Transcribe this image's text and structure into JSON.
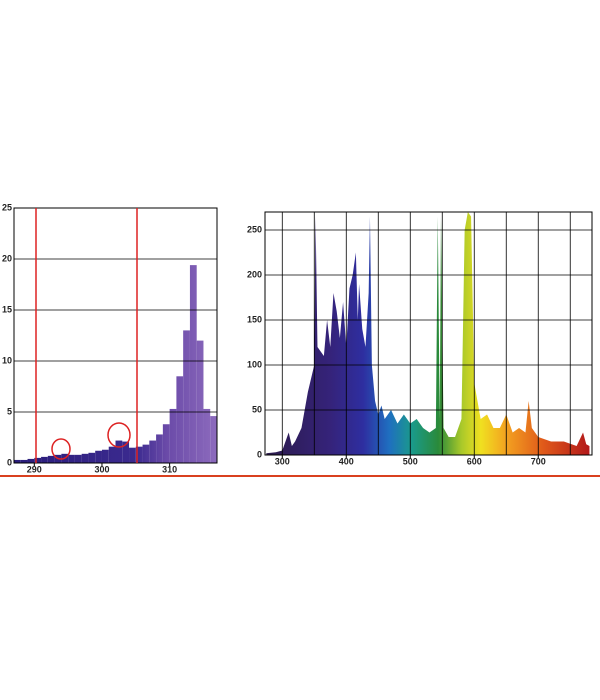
{
  "chart_data": [
    {
      "type": "histogram",
      "bins": [
        287,
        288,
        289,
        290,
        291,
        292,
        293,
        294,
        295,
        296,
        297,
        298,
        299,
        300,
        301,
        302,
        303,
        304,
        305,
        306,
        307,
        308,
        309,
        310,
        311,
        312,
        313,
        314,
        315,
        316,
        317
      ],
      "counts": [
        0.3,
        0.3,
        0.4,
        0.5,
        0.6,
        0.7,
        0.8,
        0.9,
        0.8,
        0.8,
        0.9,
        1.0,
        1.2,
        1.3,
        1.6,
        2.2,
        2.1,
        1.5,
        1.6,
        1.8,
        2.2,
        2.8,
        3.8,
        5.3,
        8.5,
        13.0,
        19.4,
        12.0,
        5.3,
        4.6
      ],
      "xlim": [
        287,
        317
      ],
      "ylim": [
        0,
        25
      ],
      "xticks": [
        290,
        300,
        310
      ],
      "yticks": [
        0,
        5,
        10,
        15,
        20,
        25
      ],
      "grid": true
    },
    {
      "type": "area",
      "x": [
        275,
        290,
        300,
        310,
        315,
        320,
        330,
        340,
        350,
        352,
        355,
        365,
        370,
        375,
        380,
        385,
        390,
        395,
        400,
        405,
        410,
        415,
        418,
        420,
        425,
        430,
        435,
        437,
        440,
        445,
        450,
        455,
        460,
        470,
        480,
        490,
        500,
        510,
        520,
        530,
        540,
        543,
        546,
        548,
        552,
        560,
        570,
        580,
        585,
        590,
        595,
        600,
        605,
        610,
        620,
        630,
        640,
        650,
        660,
        670,
        680,
        685,
        690,
        700,
        720,
        740,
        760,
        770,
        775,
        780
      ],
      "values": [
        2,
        3,
        5,
        25,
        10,
        15,
        30,
        70,
        100,
        265,
        120,
        110,
        150,
        120,
        180,
        160,
        130,
        170,
        120,
        185,
        200,
        225,
        150,
        190,
        140,
        120,
        180,
        265,
        100,
        60,
        45,
        55,
        40,
        50,
        35,
        45,
        35,
        40,
        30,
        25,
        30,
        265,
        40,
        265,
        30,
        20,
        20,
        40,
        250,
        270,
        265,
        80,
        60,
        40,
        45,
        30,
        30,
        45,
        25,
        30,
        25,
        60,
        30,
        20,
        15,
        15,
        10,
        25,
        12,
        10
      ],
      "xlim": [
        273,
        784
      ],
      "ylim": [
        0,
        270
      ],
      "xticks": [
        300,
        400,
        500,
        600,
        700
      ],
      "xgrid": [
        300,
        350,
        400,
        450,
        500,
        550,
        600,
        650,
        700,
        750
      ],
      "yticks": [
        0,
        50,
        100,
        150,
        200,
        250
      ],
      "grid": true
    }
  ]
}
